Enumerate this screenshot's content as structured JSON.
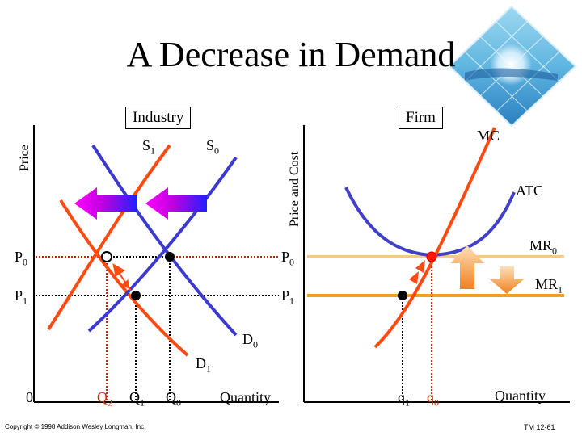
{
  "title": "A Decrease in Demand",
  "industry": {
    "panel_label": "Industry",
    "y_axis_label": "Price",
    "x_axis_label": "Quantity",
    "origin_label": "0",
    "s1": "S",
    "s1_sub": "1",
    "s0": "S",
    "s0_sub": "0",
    "d0": "D",
    "d0_sub": "0",
    "d1": "D",
    "d1_sub": "1",
    "p0": "P",
    "p0_sub": "0",
    "p1": "P",
    "p1_sub": "1",
    "q2": "Q",
    "q2_sub": "2",
    "q1": "Q",
    "q1_sub": "1",
    "q0": "Q",
    "q0_sub": "0"
  },
  "firm": {
    "panel_label": "Firm",
    "y_axis_label": "Price and Cost",
    "x_axis_label": "Quantity",
    "mc": "MC",
    "atc": "ATC",
    "mr0": "MR",
    "mr0_sub": "0",
    "mr1": "MR",
    "mr1_sub": "1",
    "p0": "P",
    "p0_sub": "0",
    "p1": "P",
    "p1_sub": "1",
    "q1": "q",
    "q1_sub": "1",
    "q0": "q",
    "q0_sub": "0"
  },
  "footer": {
    "copyright": "Copyright © 1998 Addison Wesley Longman, Inc.",
    "slide_id": "TM 12-61"
  },
  "colors": {
    "supply_curve": "#ff4a12",
    "demand_curve": "#3a3ad0",
    "atc_curve": "#4040c8",
    "mr0_line": "#f4c890",
    "mr1_line": "#f0a020",
    "dotted_red": "#cc2200"
  }
}
